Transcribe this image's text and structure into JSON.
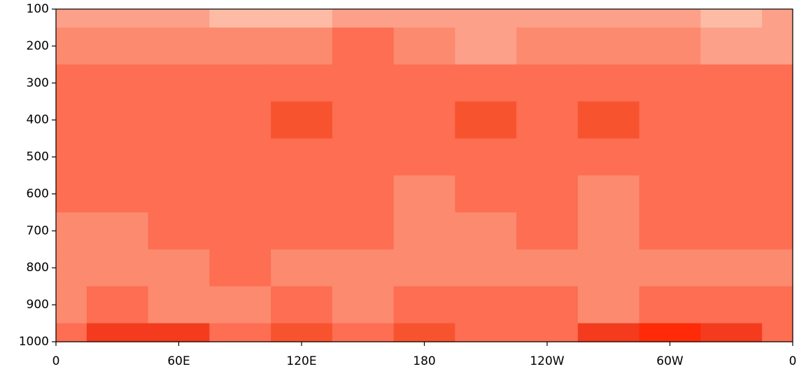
{
  "chart_data": {
    "type": "contourf",
    "x": [
      0,
      30,
      60,
      90,
      120,
      150,
      180,
      210,
      240,
      270,
      300,
      330,
      360
    ],
    "y": [
      100,
      200,
      300,
      400,
      500,
      600,
      700,
      800,
      900,
      1000
    ],
    "z": [
      [
        1,
        1,
        1,
        0,
        0,
        1,
        1,
        1,
        1,
        1,
        1,
        0,
        1
      ],
      [
        2,
        2,
        2,
        2,
        2,
        3,
        2,
        1,
        2,
        2,
        2,
        1,
        1
      ],
      [
        3,
        3,
        3,
        3,
        3,
        3,
        3,
        3,
        3,
        3,
        3,
        3,
        3
      ],
      [
        3,
        3,
        3,
        3,
        4,
        3,
        3,
        4,
        3,
        4,
        3,
        3,
        3
      ],
      [
        3,
        3,
        3,
        3,
        3,
        3,
        3,
        3,
        3,
        3,
        3,
        3,
        3
      ],
      [
        3,
        3,
        3,
        3,
        3,
        3,
        2,
        3,
        3,
        2,
        3,
        3,
        3
      ],
      [
        2,
        2,
        3,
        3,
        3,
        3,
        2,
        2,
        3,
        2,
        3,
        3,
        3
      ],
      [
        2,
        2,
        2,
        3,
        2,
        2,
        2,
        2,
        2,
        2,
        2,
        2,
        2
      ],
      [
        2,
        3,
        2,
        2,
        3,
        2,
        3,
        3,
        3,
        2,
        3,
        3,
        3
      ],
      [
        3,
        5,
        5,
        3,
        4,
        3,
        4,
        3,
        3,
        5,
        6,
        5,
        3
      ]
    ],
    "colors": [
      "#fdbba5",
      "#fca08a",
      "#fc8a6f",
      "#fd6e52",
      "#f8532f",
      "#f43b1d",
      "#fe2a08"
    ],
    "xlim": [
      0,
      360
    ],
    "xticks": [
      0,
      {
        "value": 60,
        "label": "60E"
      },
      {
        "value": 120,
        "label": "120E"
      },
      180,
      {
        "value": 240,
        "label": "120W"
      },
      {
        "value": 300,
        "label": "60W"
      },
      {
        "value": 360,
        "label": "0"
      }
    ],
    "ylim": [
      1000,
      100
    ],
    "yticks": [
      100,
      200,
      300,
      400,
      500,
      600,
      700,
      800,
      900,
      1000
    ]
  }
}
